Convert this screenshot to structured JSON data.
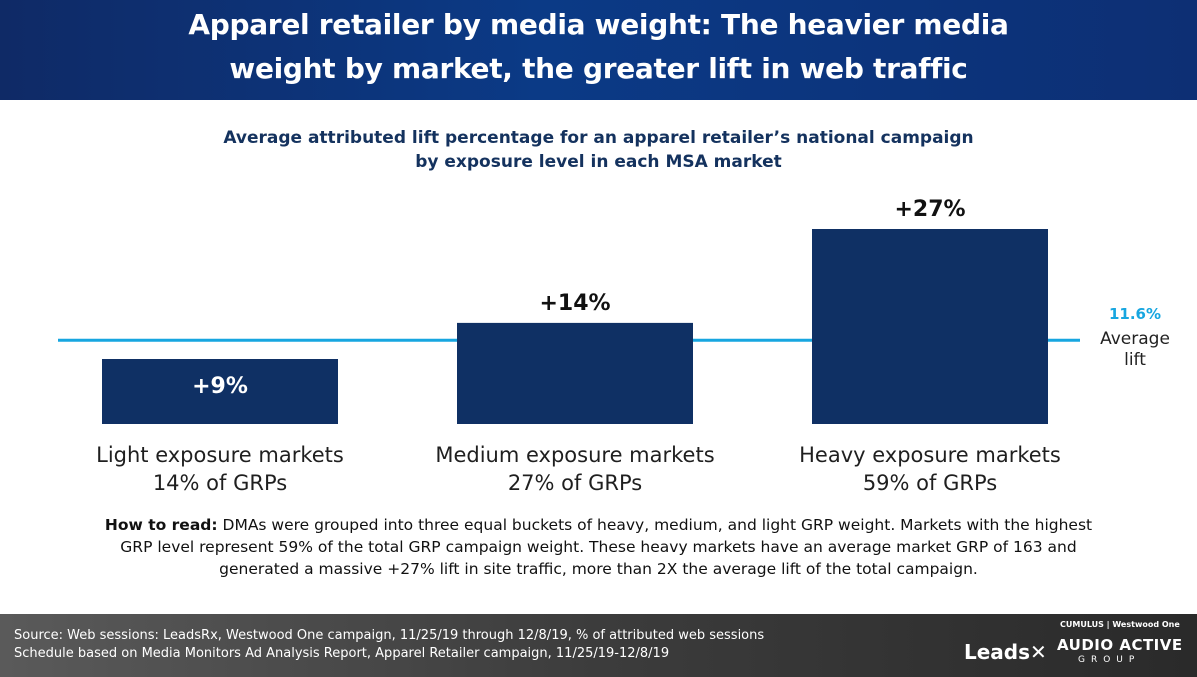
{
  "header": {
    "title_line1": "Apparel retailer by media weight: The heavier media",
    "title_line2": "weight by market, the greater lift in web traffic"
  },
  "chart_data": {
    "type": "bar",
    "title_line1": "Average attributed lift percentage for an apparel retailer’s national campaign",
    "title_line2": "by exposure level in each MSA market",
    "categories": [
      {
        "line1": "Light exposure markets",
        "line2": "14% of GRPs"
      },
      {
        "line1": "Medium exposure markets",
        "line2": "27% of GRPs"
      },
      {
        "line1": "Heavy exposure markets",
        "line2": "59% of GRPs"
      }
    ],
    "values": [
      9,
      14,
      27
    ],
    "value_labels": [
      "+9%",
      "+14%",
      "+27%"
    ],
    "unit": "%",
    "reference_line": {
      "value": 11.6,
      "label_value": "11.6%",
      "label_line1": "Average",
      "label_line2": "lift"
    },
    "bar_color": "#0f3064",
    "reference_color": "#17a6e0"
  },
  "how_to_read": {
    "label": "How to read:",
    "line1": " DMAs were grouped into three equal buckets of heavy, medium, and light GRP weight. Markets with the highest",
    "line2": "GRP level represent 59% of the total GRP campaign weight. These heavy markets have an average market GRP of 163 and",
    "line3": "generated a massive +27% lift in site traffic, more than 2X the average lift of the total campaign."
  },
  "footer": {
    "source_line1": "Source: Web sessions: LeadsRx, Westwood One campaign, 11/25/19 through 12/8/19, % of attributed web sessions",
    "source_line2": "Schedule based on Media Monitors Ad Analysis Report, Apparel Retailer campaign, 11/25/19-12/8/19",
    "logo_leads": "Leads",
    "logo_cumulus": "CUMULUS | Westwood One",
    "logo_audio1": "AUDIO ACTIVE",
    "logo_audio2": "GROUP"
  }
}
